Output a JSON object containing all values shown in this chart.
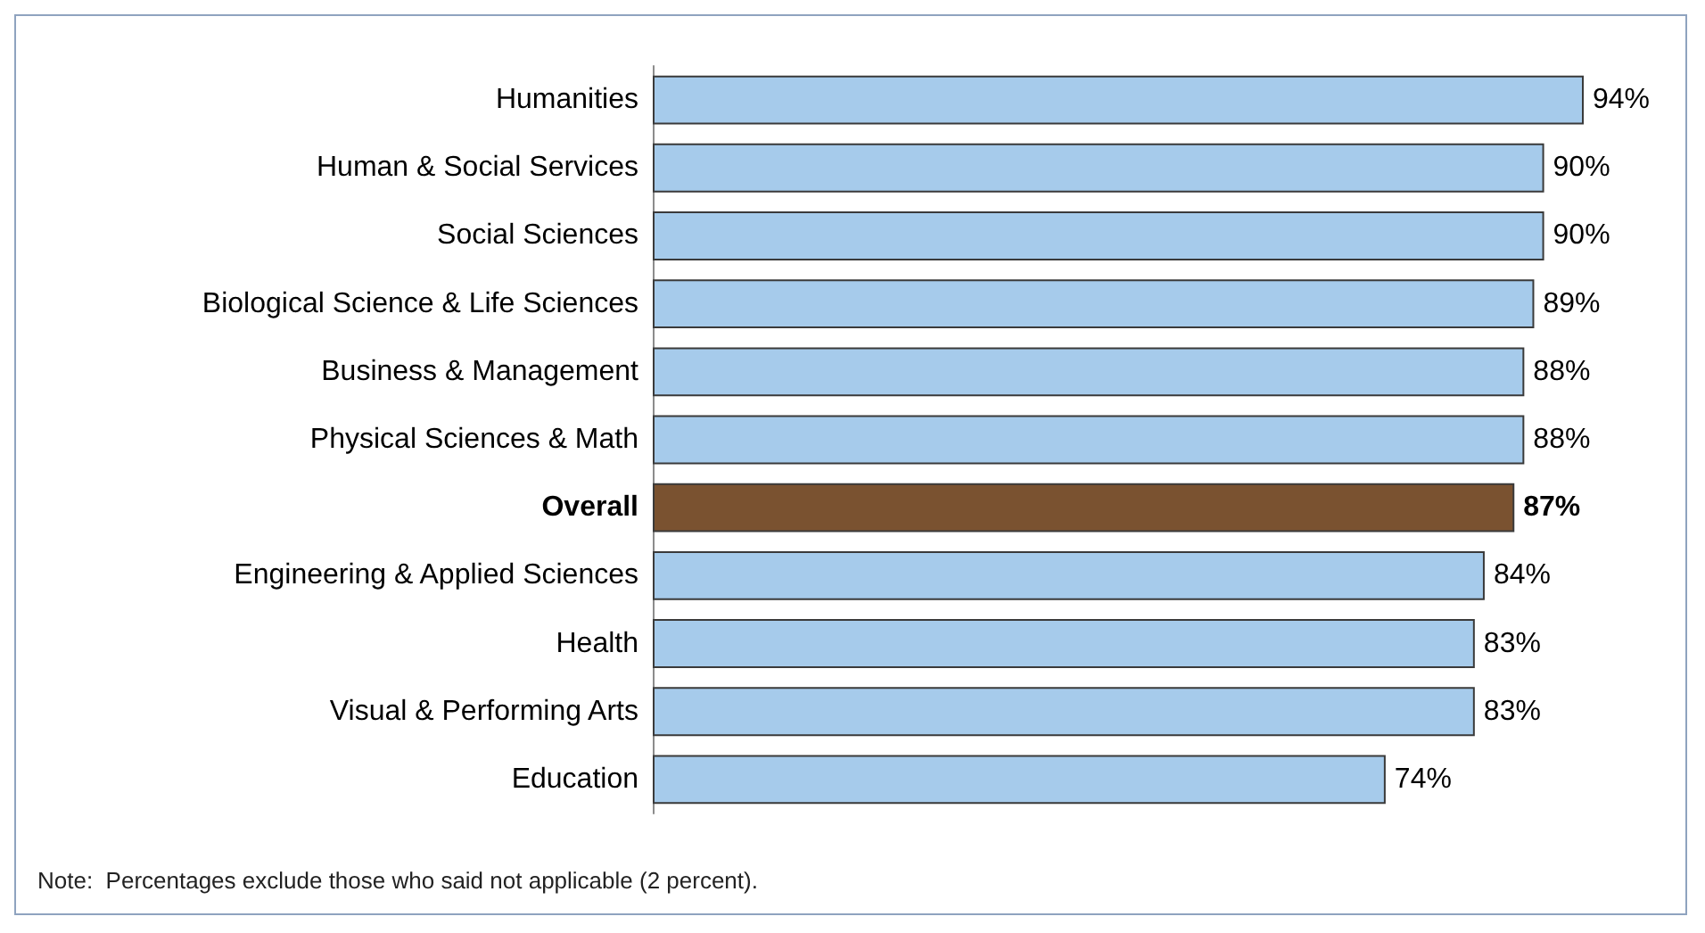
{
  "chart_data": {
    "type": "bar",
    "orientation": "horizontal",
    "categories": [
      "Humanities",
      "Human & Social Services",
      "Social Sciences",
      "Biological Science & Life Sciences",
      "Business & Management",
      "Physical Sciences & Math",
      "Overall",
      "Engineering & Applied Sciences",
      "Health",
      "Visual & Performing Arts",
      "Education"
    ],
    "values": [
      94,
      90,
      90,
      89,
      88,
      88,
      87,
      84,
      83,
      83,
      74
    ],
    "value_labels": [
      "94%",
      "90%",
      "90%",
      "89%",
      "88%",
      "88%",
      "87%",
      "84%",
      "83%",
      "83%",
      "74%"
    ],
    "colors": [
      "#a6cbeb",
      "#a6cbeb",
      "#a6cbeb",
      "#a6cbeb",
      "#a6cbeb",
      "#a6cbeb",
      "#7a5230",
      "#a6cbeb",
      "#a6cbeb",
      "#a6cbeb",
      "#a6cbeb"
    ],
    "tick_labels": "y",
    "grid": false,
    "annotations": [
      "Note:  Percentages exclude those who said not applicable (2 percent)."
    ]
  }
}
